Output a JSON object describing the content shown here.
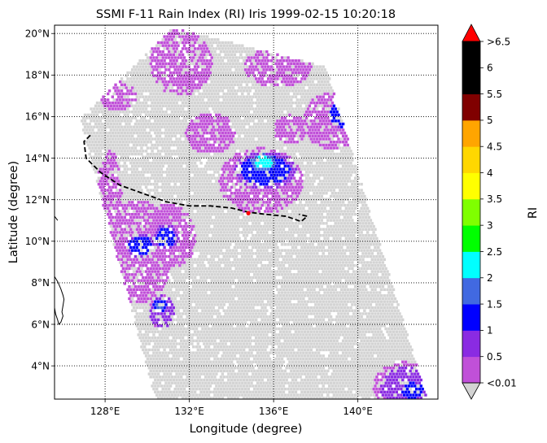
{
  "chart_data": {
    "type": "heatmap",
    "title": "SSMI F-11 Rain Index (RI) Iris 1999-02-15 10:20:18",
    "xlabel": "Longitude (degree)",
    "ylabel": "Latitude (degree)",
    "xlim": [
      125.6,
      143.8
    ],
    "ylim": [
      2.4,
      20.4
    ],
    "x_ticks": [
      128,
      132,
      136,
      140
    ],
    "x_tick_labels": [
      "128°E",
      "132°E",
      "136°E",
      "140°E"
    ],
    "y_ticks": [
      4,
      6,
      8,
      10,
      12,
      14,
      16,
      18,
      20
    ],
    "y_tick_labels": [
      "4°N",
      "6°N",
      "8°N",
      "10°N",
      "12°N",
      "14°N",
      "16°N",
      "18°N",
      "20°N"
    ],
    "grid": "dotted",
    "colorbar": {
      "label": "RI",
      "bounds": [
        0.01,
        0.5,
        1,
        1.5,
        2,
        2.5,
        3,
        3.5,
        4,
        4.5,
        5,
        5.5,
        6,
        6.5
      ],
      "tick_labels": [
        "<0.01",
        "0.5",
        "1",
        "1.5",
        "2",
        "2.5",
        "3",
        "3.5",
        "4",
        "4.5",
        "5",
        "5.5",
        "6",
        ">6.5"
      ],
      "colors": [
        "#c050d8",
        "#8a2be2",
        "#0000ff",
        "#4169e1",
        "#00ffff",
        "#00ff00",
        "#7fff00",
        "#ffff00",
        "#ffd700",
        "#ffa500",
        "#800000",
        "#000000",
        "#000000"
      ],
      "under_color": "#d3d3d3",
      "over_color": "#ff0000"
    },
    "swath": {
      "corners": [
        [
          126.8,
          15.9
        ],
        [
          131.2,
          20.3
        ],
        [
          138.5,
          18.4
        ],
        [
          143.3,
          2.4
        ],
        [
          130.4,
          2.4
        ]
      ],
      "no_rain_color": "#d3d3d3"
    },
    "rain_regions": [
      {
        "lon": 128.2,
        "lat": 12.0,
        "rlon": 0.6,
        "rlat": 2.4,
        "ri": 0.3
      },
      {
        "lon": 129.5,
        "lat": 9.5,
        "rlon": 1.8,
        "rlat": 2.5,
        "ri": 0.3
      },
      {
        "lon": 129.7,
        "lat": 9.8,
        "rlon": 0.7,
        "rlat": 0.6,
        "ri": 1.2
      },
      {
        "lon": 131.0,
        "lat": 10.2,
        "rlon": 1.3,
        "rlat": 1.6,
        "ri": 0.3
      },
      {
        "lon": 130.9,
        "lat": 10.2,
        "rlon": 0.6,
        "rlat": 0.6,
        "ri": 1.2
      },
      {
        "lon": 130.7,
        "lat": 6.6,
        "rlon": 0.6,
        "rlat": 0.8,
        "ri": 0.7
      },
      {
        "lon": 130.6,
        "lat": 6.9,
        "rlon": 0.3,
        "rlat": 0.3,
        "ri": 1.6
      },
      {
        "lon": 135.4,
        "lat": 12.9,
        "rlon": 2.0,
        "rlat": 1.6,
        "ri": 0.3
      },
      {
        "lon": 135.6,
        "lat": 13.4,
        "rlon": 1.5,
        "rlat": 0.9,
        "ri": 1.2
      },
      {
        "lon": 135.5,
        "lat": 13.8,
        "rlon": 0.6,
        "rlat": 0.4,
        "ri": 2.3
      },
      {
        "lon": 138.8,
        "lat": 15.8,
        "rlon": 1.4,
        "rlat": 1.4,
        "ri": 0.3
      },
      {
        "lon": 139.4,
        "lat": 16.1,
        "rlon": 0.8,
        "rlat": 0.7,
        "ri": 1.3
      },
      {
        "lon": 139.6,
        "lat": 16.3,
        "rlon": 0.4,
        "rlat": 0.3,
        "ri": 2.3
      },
      {
        "lon": 142.3,
        "lat": 3.0,
        "rlon": 1.6,
        "rlat": 1.2,
        "ri": 0.6
      },
      {
        "lon": 142.6,
        "lat": 2.8,
        "rlon": 0.7,
        "rlat": 0.5,
        "ri": 1.2
      },
      {
        "lon": 131.6,
        "lat": 18.6,
        "rlon": 1.5,
        "rlat": 1.6,
        "ri": 0.3
      },
      {
        "lon": 136.2,
        "lat": 18.4,
        "rlon": 1.6,
        "rlat": 1.0,
        "ri": 0.3
      },
      {
        "lon": 133.0,
        "lat": 15.2,
        "rlon": 1.2,
        "rlat": 1.0,
        "ri": 0.3
      },
      {
        "lon": 136.8,
        "lat": 15.4,
        "rlon": 0.8,
        "rlat": 0.7,
        "ri": 0.3
      },
      {
        "lon": 128.6,
        "lat": 17.0,
        "rlon": 0.9,
        "rlat": 0.7,
        "ri": 0.3
      }
    ],
    "storm_track": {
      "lon": [
        127.3,
        127.0,
        127.1,
        127.8,
        128.7,
        129.8,
        130.9,
        132.0,
        133.0,
        134.0,
        134.8,
        135.6,
        136.6,
        137.3,
        137.6,
        137.2
      ],
      "lat": [
        15.1,
        14.8,
        14.0,
        13.3,
        12.7,
        12.3,
        11.9,
        11.7,
        11.7,
        11.6,
        11.4,
        11.3,
        11.2,
        10.95,
        11.2,
        11.3
      ],
      "style": "dashed",
      "color": "#000000"
    },
    "storm_position": {
      "lon": 134.8,
      "lat": 11.35,
      "color": "#ff0000"
    },
    "coastline": {
      "lon": [
        125.6,
        125.75,
        125.9,
        126.0,
        126.05,
        126.0,
        125.95,
        126.0,
        125.9,
        125.8,
        125.75,
        125.65,
        125.6
      ],
      "lat": [
        8.3,
        8.05,
        7.7,
        7.4,
        7.2,
        6.9,
        6.6,
        6.4,
        6.1,
        6.0,
        6.2,
        6.5,
        6.8
      ]
    }
  }
}
